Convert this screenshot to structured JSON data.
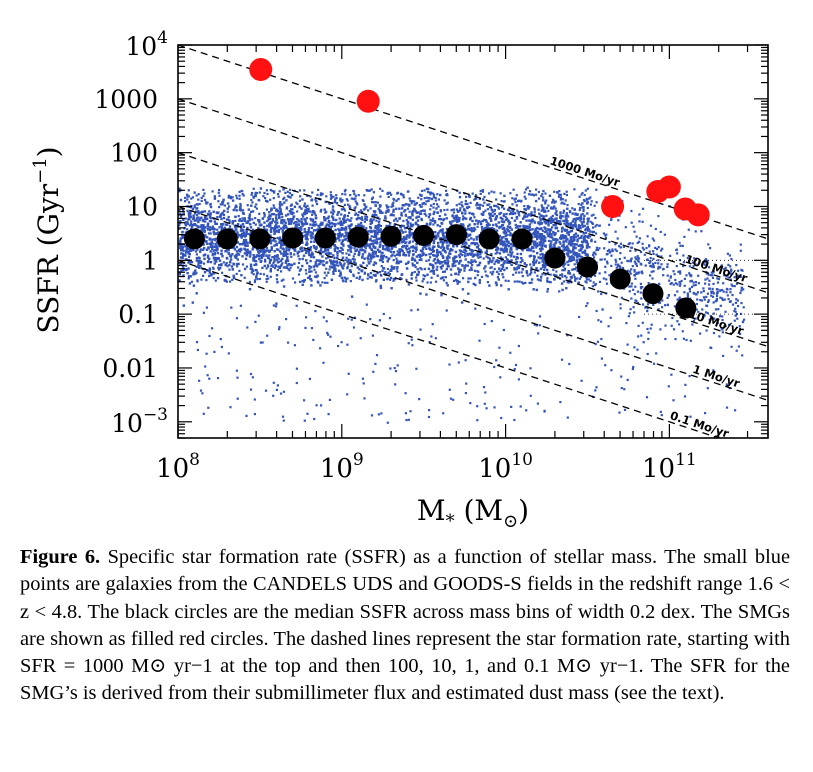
{
  "chart_data": {
    "type": "scatter",
    "xlabel_main": "M",
    "xlabel_sub": "*",
    "xlabel_unit": "(M",
    "xlabel_unit_close": ")",
    "ylabel_main": "SSFR (Gyr",
    "ylabel_exp": "−1",
    "ylabel_close": ")",
    "x_log": true,
    "y_log": true,
    "xlim": [
      100000000,
      400000000000
    ],
    "ylim": [
      0.0005,
      10000
    ],
    "x_ticks": [
      {
        "value": 100000000,
        "base": "10",
        "exp": "8"
      },
      {
        "value": 1000000000,
        "base": "10",
        "exp": "9"
      },
      {
        "value": 10000000000,
        "base": "10",
        "exp": "10"
      },
      {
        "value": 100000000000,
        "base": "10",
        "exp": "11"
      }
    ],
    "y_ticks": [
      {
        "value": 10000,
        "label": "10",
        "exp": "4"
      },
      {
        "value": 1000,
        "label": "1000"
      },
      {
        "value": 100,
        "label": "100"
      },
      {
        "value": 10,
        "label": "10"
      },
      {
        "value": 1,
        "label": "1"
      },
      {
        "value": 0.1,
        "label": "0.1"
      },
      {
        "value": 0.01,
        "label": "0.01"
      },
      {
        "value": 0.001,
        "label": "10",
        "exp": "−3"
      }
    ],
    "sfr_lines": [
      {
        "sfr": 1000,
        "label": "1000 Mo/yr",
        "label_mass": 30000000000
      },
      {
        "sfr": 100,
        "label": "100 Mo/yr",
        "label_mass": 190000000000
      },
      {
        "sfr": 10,
        "label": "10 Mo/yr",
        "label_mass": 190000000000
      },
      {
        "sfr": 1,
        "label": "1 Mo/yr",
        "label_mass": 190000000000
      },
      {
        "sfr": 0.1,
        "label": "0.1 Mo/yr",
        "label_mass": 150000000000
      }
    ],
    "series": [
      {
        "kind": "median",
        "color": "#000000",
        "points": [
          {
            "x": 126000000,
            "y": 2.5
          },
          {
            "x": 200000000,
            "y": 2.5
          },
          {
            "x": 316000000,
            "y": 2.5
          },
          {
            "x": 501000000,
            "y": 2.6
          },
          {
            "x": 794000000,
            "y": 2.6
          },
          {
            "x": 1260000000,
            "y": 2.7
          },
          {
            "x": 2000000000,
            "y": 2.8
          },
          {
            "x": 3160000000,
            "y": 2.9
          },
          {
            "x": 5010000000,
            "y": 3.0
          },
          {
            "x": 7940000000,
            "y": 2.5
          },
          {
            "x": 12600000000,
            "y": 2.5
          },
          {
            "x": 20000000000,
            "y": 1.1
          },
          {
            "x": 31600000000,
            "y": 0.75
          },
          {
            "x": 50100000000,
            "y": 0.45
          },
          {
            "x": 79400000000,
            "y": 0.24
          },
          {
            "x": 126000000000,
            "y": 0.13
          }
        ]
      },
      {
        "kind": "smg",
        "color": "#ff1111",
        "points": [
          {
            "x": 320000000,
            "y": 3500
          },
          {
            "x": 1450000000,
            "y": 900
          },
          {
            "x": 45000000000,
            "y": 10
          },
          {
            "x": 85000000000,
            "y": 19
          },
          {
            "x": 100000000000,
            "y": 23
          },
          {
            "x": 125000000000,
            "y": 9
          },
          {
            "x": 150000000000,
            "y": 7
          }
        ]
      },
      {
        "kind": "galaxies",
        "color": "#3355bb"
      }
    ]
  },
  "caption": {
    "label": "Figure 6.",
    "text": " Specific star formation rate (SSFR) as a function of stellar mass. The small blue points are galaxies from the CANDELS UDS and GOODS-S fields in the redshift range 1.6 < z < 4.8. The black circles are the median SSFR across mass bins of width 0.2 dex. The SMGs are shown as filled red circles. The dashed lines represent the star formation rate, starting with SFR = 1000 M⊙ yr−1 at the top and then 100, 10, 1, and 0.1 M⊙ yr−1. The SFR for the SMG’s is derived from their submillimeter flux and estimated dust mass (see the text)."
  }
}
